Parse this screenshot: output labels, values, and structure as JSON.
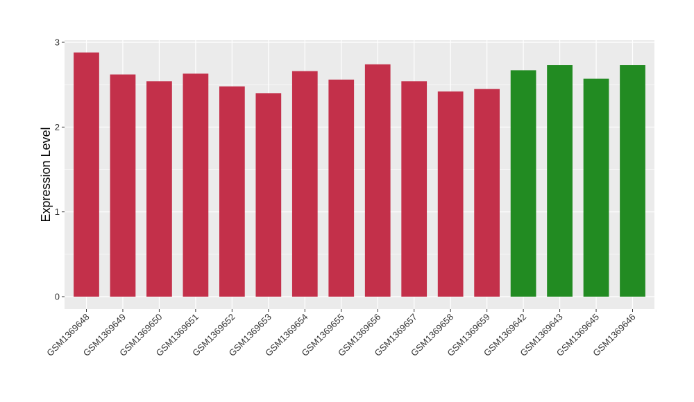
{
  "chart_data": {
    "type": "bar",
    "title": "",
    "xlabel": "",
    "ylabel": "Expression Level",
    "ylim": [
      0,
      3
    ],
    "yticks": [
      0,
      1,
      2,
      3
    ],
    "grid": true,
    "legend": "none",
    "categories": [
      "GSM1369648",
      "GSM1369649",
      "GSM1369650",
      "GSM1369651",
      "GSM1369652",
      "GSM1369653",
      "GSM1369654",
      "GSM1369655",
      "GSM1369656",
      "GSM1369657",
      "GSM1369658",
      "GSM1369659",
      "GSM1369642",
      "GSM1369643",
      "GSM1369645",
      "GSM1369646"
    ],
    "values": [
      2.88,
      2.62,
      2.54,
      2.63,
      2.48,
      2.4,
      2.66,
      2.56,
      2.74,
      2.54,
      2.42,
      2.45,
      2.67,
      2.73,
      2.57,
      2.73
    ],
    "groups": [
      "a",
      "a",
      "a",
      "a",
      "a",
      "a",
      "a",
      "a",
      "a",
      "a",
      "a",
      "a",
      "b",
      "b",
      "b",
      "b"
    ],
    "colors": {
      "a": "#C3304A",
      "b": "#228B22"
    },
    "panel_background": "#EBEBEB",
    "grid_color": "#FFFFFF"
  }
}
